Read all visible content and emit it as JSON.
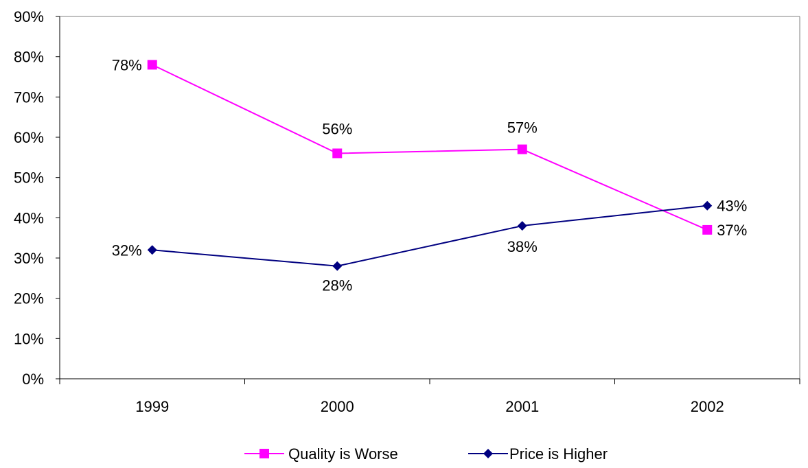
{
  "chart_data": {
    "type": "line",
    "categories": [
      "1999",
      "2000",
      "2001",
      "2002"
    ],
    "series": [
      {
        "name": "Quality is Worse",
        "values": [
          78,
          56,
          57,
          37
        ],
        "labels": [
          "78%",
          "56%",
          "57%",
          "37%"
        ],
        "color": "#ff00ff",
        "marker": "square"
      },
      {
        "name": "Price is Higher",
        "values": [
          32,
          28,
          38,
          43
        ],
        "labels": [
          "32%",
          "28%",
          "38%",
          "43%"
        ],
        "color": "#000080",
        "marker": "diamond"
      }
    ],
    "ylim": [
      0,
      90
    ],
    "yticks": [
      "0%",
      "10%",
      "20%",
      "30%",
      "40%",
      "50%",
      "60%",
      "70%",
      "80%",
      "90%"
    ],
    "title": "",
    "xlabel": "",
    "ylabel": "",
    "grid": false,
    "legend_position": "bottom"
  }
}
